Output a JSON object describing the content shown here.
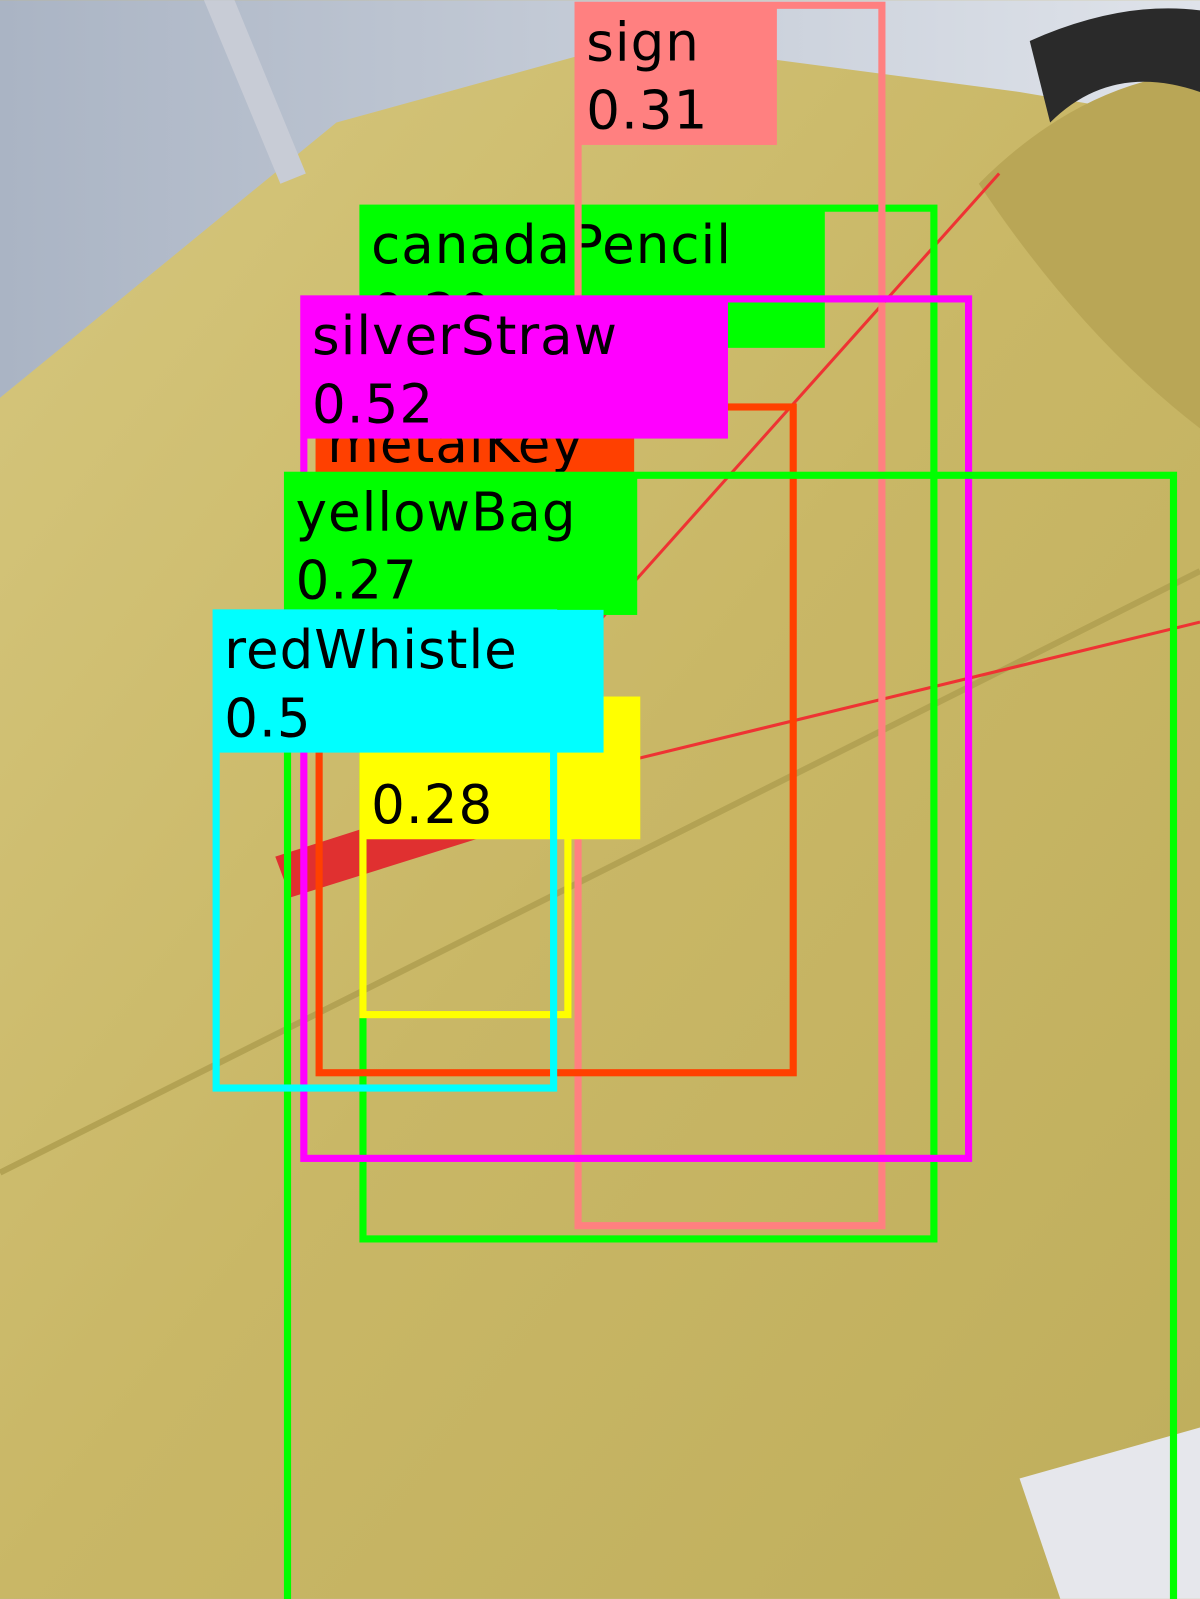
{
  "detections": [
    {
      "label": "canadaPencil",
      "score": "0.29",
      "color": "#00ff00"
    },
    {
      "label": "sign",
      "score": "0.31",
      "color": "#ff8080"
    },
    {
      "label": "metalKey",
      "color": "#ff4000"
    },
    {
      "label": "silverStraw",
      "score": "0.52",
      "color": "#ff00ff"
    },
    {
      "score": "0.28",
      "color": "#ffff00"
    },
    {
      "label": "yellowBag",
      "score": "0.27",
      "color": "#00ff00"
    },
    {
      "label": "redWhistle",
      "score": "0.5",
      "color": "#00ffff"
    }
  ]
}
